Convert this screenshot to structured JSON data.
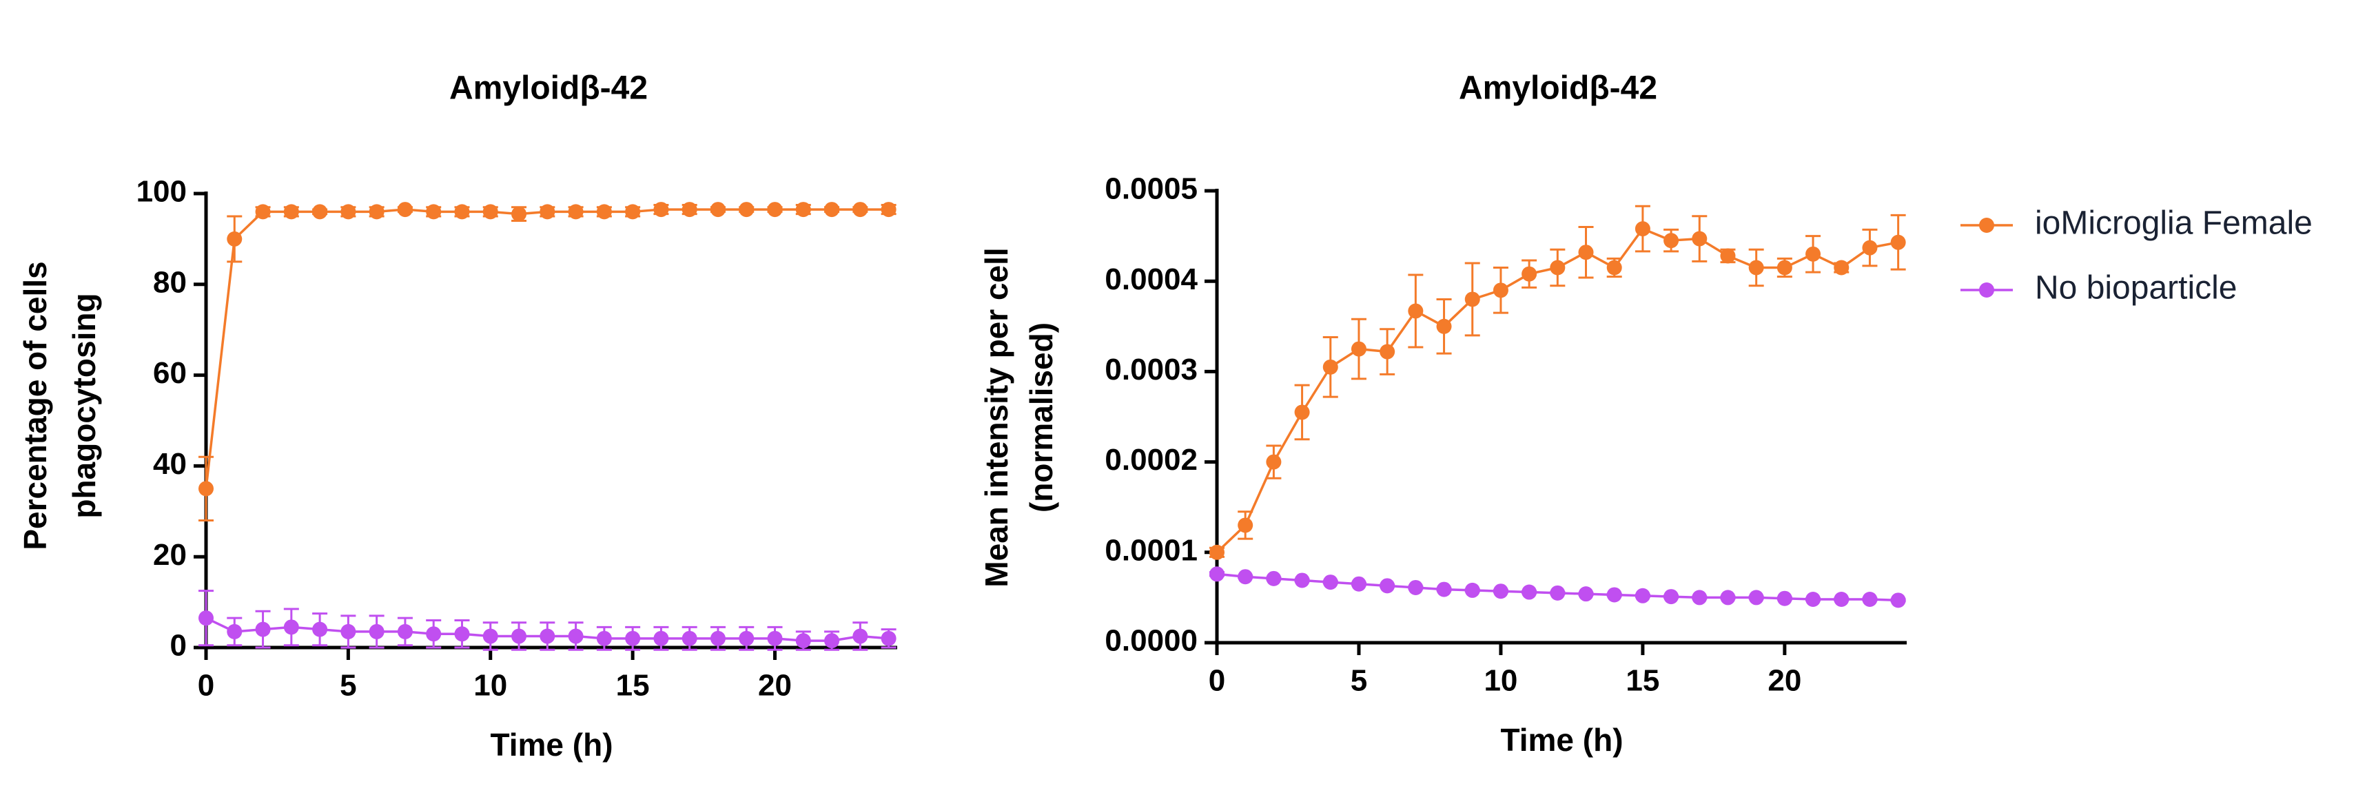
{
  "chart_data": [
    {
      "type": "line",
      "title": "Amyloidβ-42",
      "xlabel": "Time (h)",
      "ylabel": [
        "Percentage of cells",
        "phagocytosing"
      ],
      "x": [
        0,
        1,
        2,
        3,
        4,
        5,
        6,
        7,
        8,
        9,
        10,
        11,
        12,
        13,
        14,
        15,
        16,
        17,
        18,
        19,
        20,
        21,
        22,
        23,
        24
      ],
      "xlim": [
        0,
        24.3
      ],
      "xticks": [
        0,
        5,
        10,
        15,
        20
      ],
      "ylim": [
        0,
        100
      ],
      "yticks": [
        0,
        20,
        40,
        60,
        80,
        100
      ],
      "series": [
        {
          "color": "#f47b2a",
          "values": [
            35,
            90,
            96,
            96,
            96,
            96,
            96,
            96.5,
            96,
            96,
            96,
            95.5,
            96,
            96,
            96,
            96,
            96.5,
            96.5,
            96.5,
            96.5,
            96.5,
            96.5,
            96.5,
            96.5,
            96.5
          ],
          "errors": [
            7,
            5,
            1,
            1,
            0.5,
            1,
            1,
            0.5,
            1,
            1,
            1,
            1.5,
            1,
            1,
            1,
            1,
            1,
            1,
            0.5,
            0.5,
            0.5,
            1,
            0.5,
            0.5,
            1
          ]
        },
        {
          "color": "#c04ff0",
          "values": [
            6.5,
            3.5,
            4,
            4.5,
            4,
            3.5,
            3.5,
            3.5,
            3,
            3,
            2.5,
            2.5,
            2.5,
            2.5,
            2,
            2,
            2,
            2,
            2,
            2,
            2,
            1.5,
            1.5,
            2.5,
            2
          ],
          "errors": [
            6,
            3,
            4,
            4,
            3.5,
            3.5,
            3.5,
            3,
            3,
            3,
            3,
            3,
            3,
            3,
            2.5,
            2.5,
            2.5,
            2.5,
            2.5,
            2.5,
            2.5,
            2,
            2,
            3,
            2
          ]
        }
      ]
    },
    {
      "type": "line",
      "title": "Amyloidβ-42",
      "xlabel": "Time (h)",
      "ylabel": [
        "Mean intensity per cell",
        "(normalised)"
      ],
      "x": [
        0,
        1,
        2,
        3,
        4,
        5,
        6,
        7,
        8,
        9,
        10,
        11,
        12,
        13,
        14,
        15,
        16,
        17,
        18,
        19,
        20,
        21,
        22,
        23,
        24
      ],
      "xlim": [
        0,
        24.3
      ],
      "xticks": [
        0,
        5,
        10,
        15,
        20
      ],
      "ylim": [
        0,
        0.0005
      ],
      "yticks": [
        {
          "value": 0,
          "label": "0.0000"
        },
        0.0001,
        0.0002,
        0.0003,
        0.0004,
        0.0005
      ],
      "legend": "right",
      "series": [
        {
          "name": "ioMicroglia Female",
          "color": "#f47b2a",
          "values": [
            0.0001,
            0.00013,
            0.0002,
            0.000255,
            0.000305,
            0.000325,
            0.000322,
            0.000367,
            0.00035,
            0.00038,
            0.00039,
            0.000408,
            0.000415,
            0.000432,
            0.000415,
            0.000458,
            0.000445,
            0.000447,
            0.000428,
            0.000415,
            0.000415,
            0.00043,
            0.000415,
            0.000437,
            0.000443
          ],
          "errors": [
            5e-06,
            1.5e-05,
            1.8e-05,
            3e-05,
            3.3e-05,
            3.3e-05,
            2.5e-05,
            4e-05,
            3e-05,
            4e-05,
            2.5e-05,
            1.5e-05,
            2e-05,
            2.8e-05,
            1e-05,
            2.5e-05,
            1.2e-05,
            2.5e-05,
            7e-06,
            2e-05,
            1e-05,
            2e-05,
            5e-06,
            2e-05,
            3e-05
          ]
        },
        {
          "name": "No bioparticle",
          "color": "#c04ff0",
          "values": [
            7.6e-05,
            7.3e-05,
            7.1e-05,
            6.9e-05,
            6.7e-05,
            6.5e-05,
            6.3e-05,
            6.1e-05,
            5.9e-05,
            5.8e-05,
            5.7e-05,
            5.6e-05,
            5.5e-05,
            5.4e-05,
            5.3e-05,
            5.2e-05,
            5.1e-05,
            5e-05,
            5e-05,
            5e-05,
            4.9e-05,
            4.8e-05,
            4.8e-05,
            4.8e-05,
            4.7e-05
          ],
          "errors": [
            2e-06,
            1e-06,
            1e-06,
            1e-06,
            1e-06,
            1e-06,
            1e-06,
            1e-06,
            1e-06,
            1e-06,
            1e-06,
            1e-06,
            1e-06,
            1e-06,
            1e-06,
            1e-06,
            1e-06,
            1e-06,
            1e-06,
            1e-06,
            1e-06,
            1e-06,
            1e-06,
            1e-06,
            1e-06
          ]
        }
      ]
    }
  ]
}
